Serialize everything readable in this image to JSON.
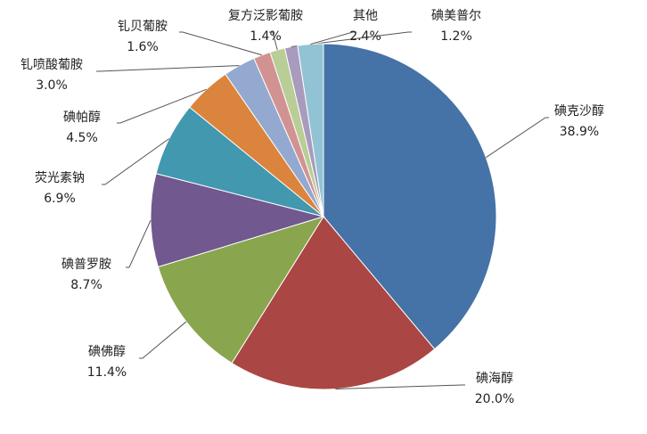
{
  "chart_data": {
    "type": "pie",
    "categories": [
      "碘克沙醇",
      "碘海醇",
      "碘佛醇",
      "碘普罗胺",
      "荧光素钠",
      "碘帕醇",
      "钆喷酸葡胺",
      "钆贝葡胺",
      "复方泛影葡胺",
      "碘美普尔",
      "其他"
    ],
    "values": [
      38.9,
      20.0,
      11.4,
      8.7,
      6.9,
      4.5,
      3.0,
      1.6,
      1.4,
      1.2,
      2.4
    ],
    "value_labels": [
      "38.9%",
      "20.0%",
      "11.4%",
      "8.7%",
      "6.9%",
      "4.5%",
      "3.0%",
      "1.6%",
      "1.4%",
      "1.2%",
      "2.4%"
    ],
    "colors": [
      "#4572a7",
      "#aa4643",
      "#89a54e",
      "#71588f",
      "#4198af",
      "#db843d",
      "#93a9cf",
      "#d19392",
      "#b9cd96",
      "#a99bbd",
      "#92c3d4"
    ]
  }
}
